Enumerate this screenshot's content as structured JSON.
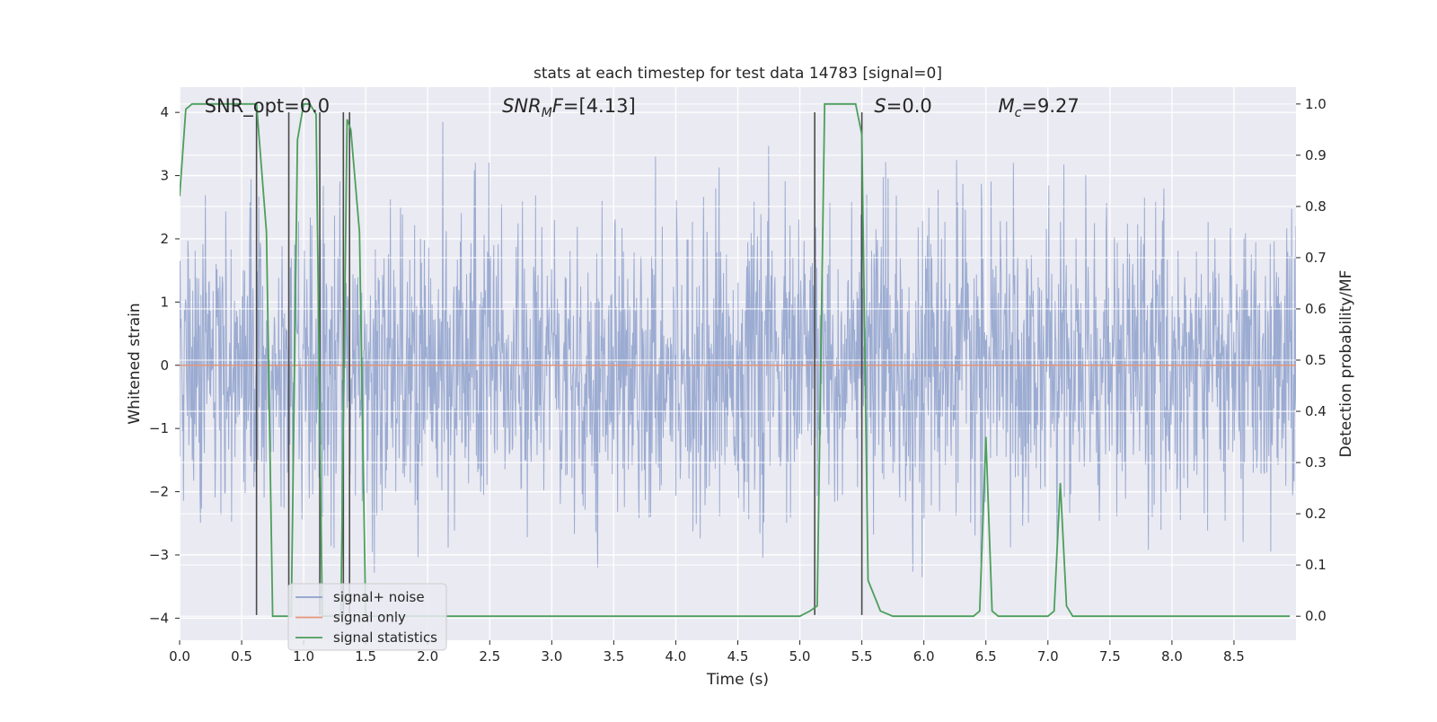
{
  "chart_data": {
    "type": "line",
    "title": "stats at each timestep for test data 14783 [signal=0]",
    "xlabel": "Time (s)",
    "ylabel_left": "Whitened strain",
    "ylabel_right": "Detection probability/MF",
    "xlim": [
      0.0,
      9.0
    ],
    "ylim_left": [
      -4.35,
      4.4
    ],
    "ylim_right": [
      -0.047,
      1.033
    ],
    "x_ticks": [
      "0.0",
      "0.5",
      "1.0",
      "1.5",
      "2.0",
      "2.5",
      "3.0",
      "3.5",
      "4.0",
      "4.5",
      "5.0",
      "5.5",
      "6.0",
      "6.5",
      "7.0",
      "7.5",
      "8.0",
      "8.5"
    ],
    "y_ticks_left": [
      "−4",
      "−3",
      "−2",
      "−1",
      "0",
      "1",
      "2",
      "3",
      "4"
    ],
    "y_ticks_right": [
      "0.0",
      "0.1",
      "0.2",
      "0.3",
      "0.4",
      "0.5",
      "0.6",
      "0.7",
      "0.8",
      "0.9",
      "1.0"
    ],
    "grid": true,
    "legend_position": "lower-left",
    "annotations": [
      {
        "id": "snr-opt",
        "text": "SNR_opt=0.0",
        "x": 0.2
      },
      {
        "id": "snr-mf",
        "text": "SNR",
        "sub": "M",
        "rest": "F=[4.13]",
        "x": 2.6
      },
      {
        "id": "s",
        "text": "S",
        "rest": "=0.0",
        "x": 5.6
      },
      {
        "id": "mc",
        "text": "M",
        "sub": "c",
        "rest": "=9.27",
        "x": 6.6
      }
    ],
    "series": [
      {
        "name": "signal+ noise",
        "color": "#8da0cb",
        "axis": "left",
        "description": "whitened strain noise, amplitude roughly between -3.8 and 3.8"
      },
      {
        "name": "signal only",
        "color": "#e5967a",
        "axis": "left",
        "x": [
          0.0,
          9.0
        ],
        "y": [
          0.0,
          0.0
        ]
      },
      {
        "name": "signal statistics",
        "color": "#4c9f5b",
        "axis": "right",
        "x": [
          0.0,
          0.05,
          0.1,
          0.15,
          0.2,
          0.3,
          0.4,
          0.5,
          0.55,
          0.6,
          0.62,
          0.7,
          0.75,
          0.8,
          0.85,
          0.9,
          0.95,
          1.0,
          1.05,
          1.1,
          1.15,
          1.2,
          1.25,
          1.3,
          1.35,
          1.38,
          1.45,
          1.5,
          1.6,
          2.0,
          3.0,
          4.0,
          5.0,
          5.08,
          5.14,
          5.2,
          5.3,
          5.45,
          5.5,
          5.55,
          5.65,
          5.75,
          6.0,
          6.4,
          6.45,
          6.5,
          6.55,
          6.6,
          6.7,
          7.0,
          7.05,
          7.1,
          7.15,
          7.2,
          7.5,
          8.0,
          8.5,
          8.95
        ],
        "y": [
          0.82,
          0.99,
          1.0,
          1.0,
          1.0,
          1.0,
          1.0,
          1.0,
          1.0,
          1.0,
          1.0,
          0.75,
          0.0,
          0.0,
          0.0,
          0.0,
          0.93,
          1.0,
          1.0,
          0.98,
          0.0,
          0.0,
          0.0,
          0.0,
          0.97,
          0.95,
          0.75,
          0.0,
          0.0,
          0.0,
          0.0,
          0.0,
          0.0,
          0.01,
          0.02,
          1.0,
          1.0,
          1.0,
          0.94,
          0.07,
          0.01,
          0.0,
          0.0,
          0.0,
          0.01,
          0.35,
          0.01,
          0.0,
          0.0,
          0.0,
          0.01,
          0.26,
          0.02,
          0.0,
          0.0,
          0.0,
          0.0,
          0.0
        ]
      }
    ],
    "vertical_lines": [
      {
        "x": 0.62,
        "y_top": 4.0,
        "y_bottom": -3.95
      },
      {
        "x": 0.88,
        "y_top": 4.0,
        "y_bottom": -3.95
      },
      {
        "x": 1.13,
        "y_top": 4.0,
        "y_bottom": -3.95
      },
      {
        "x": 1.32,
        "y_top": 4.0,
        "y_bottom": -3.95
      },
      {
        "x": 1.37,
        "y_top": 4.0,
        "y_bottom": -3.95
      },
      {
        "x": 5.12,
        "y_top": 4.0,
        "y_bottom": -3.95
      },
      {
        "x": 5.5,
        "y_top": 4.0,
        "y_bottom": -3.95
      }
    ]
  }
}
